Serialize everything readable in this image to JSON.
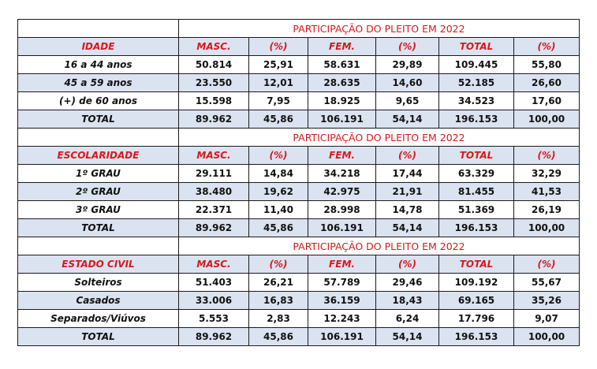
{
  "title": "PARTICIPAÇÃO DO PLEITO EM 2022",
  "columns": [
    "MASC.",
    "(%)",
    "FEM.",
    "(%)",
    "TOTAL",
    "(%)"
  ],
  "colors": {
    "header_red": "#d7191c",
    "shade": "#dbe3f1"
  },
  "sections": [
    {
      "heading": "IDADE",
      "rows": [
        {
          "label": "16 a 44 anos",
          "values": [
            "50.814",
            "25,91",
            "58.631",
            "29,89",
            "109.445",
            "55,80"
          ]
        },
        {
          "label": "45 a 59 anos",
          "values": [
            "23.550",
            "12,01",
            "28.635",
            "14,60",
            "52.185",
            "26,60"
          ]
        },
        {
          "label": "(+) de 60 anos",
          "values": [
            "15.598",
            "7,95",
            "18.925",
            "9,65",
            "34.523",
            "17,60"
          ]
        },
        {
          "label": "TOTAL",
          "values": [
            "89.962",
            "45,86",
            "106.191",
            "54,14",
            "196.153",
            "100,00"
          ]
        }
      ]
    },
    {
      "heading": "ESCOLARIDADE",
      "rows": [
        {
          "label": "1º GRAU",
          "values": [
            "29.111",
            "14,84",
            "34.218",
            "17,44",
            "63.329",
            "32,29"
          ]
        },
        {
          "label": "2º GRAU",
          "values": [
            "38.480",
            "19,62",
            "42.975",
            "21,91",
            "81.455",
            "41,53"
          ]
        },
        {
          "label": "3º GRAU",
          "values": [
            "22.371",
            "11,40",
            "28.998",
            "14,78",
            "51.369",
            "26,19"
          ]
        },
        {
          "label": "TOTAL",
          "values": [
            "89.962",
            "45,86",
            "106.191",
            "54,14",
            "196.153",
            "100,00"
          ]
        }
      ]
    },
    {
      "heading": "ESTADO CIVIL",
      "rows": [
        {
          "label": "Solteiros",
          "values": [
            "51.403",
            "26,21",
            "57.789",
            "29,46",
            "109.192",
            "55,67"
          ]
        },
        {
          "label": "Casados",
          "values": [
            "33.006",
            "16,83",
            "36.159",
            "18,43",
            "69.165",
            "35,26"
          ]
        },
        {
          "label": "Separados/Viúvos",
          "values": [
            "5.553",
            "2,83",
            "12.243",
            "6,24",
            "17.796",
            "9,07"
          ]
        },
        {
          "label": "TOTAL",
          "values": [
            "89.962",
            "45,86",
            "106.191",
            "54,14",
            "196.153",
            "100,00"
          ]
        }
      ]
    }
  ]
}
